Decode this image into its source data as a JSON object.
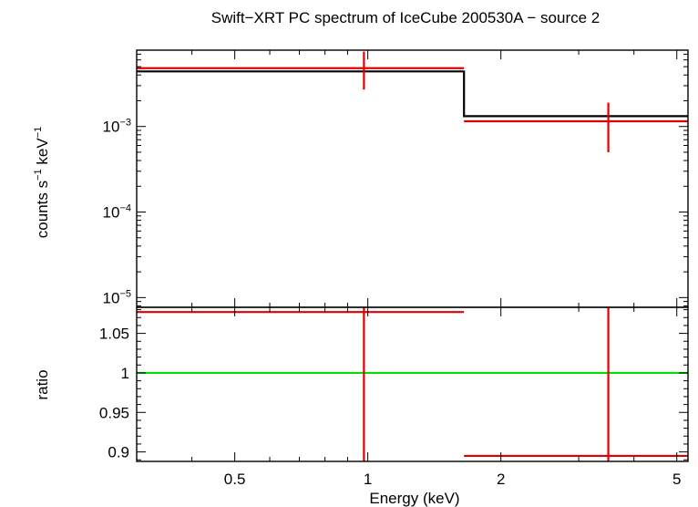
{
  "chart_data": [
    {
      "type": "scatter",
      "panel": "spectrum",
      "title": "Swift−XRT PC spectrum of IceCube 200530A − source 2",
      "ylabel_parts": [
        "counts s",
        "−1",
        " keV",
        "−1"
      ],
      "xscale": "log",
      "yscale": "log",
      "xlim": [
        0.3,
        5.3
      ],
      "ylim": [
        7.7e-06,
        0.0078
      ],
      "yticks": [
        {
          "value": 0.001,
          "base": "10",
          "exp": "−3"
        },
        {
          "value": 0.0001,
          "base": "10",
          "exp": "−4"
        },
        {
          "value": 1e-05,
          "base": "10",
          "exp": "−5"
        }
      ],
      "data_points": [
        {
          "x": 0.98,
          "xlo": 0.3,
          "xhi": 1.65,
          "y": 0.0048,
          "ylo": 0.0027,
          "yhi": 0.0075
        },
        {
          "x": 3.5,
          "xlo": 1.65,
          "xhi": 5.3,
          "y": 0.00115,
          "ylo": 0.0005,
          "yhi": 0.0019
        }
      ],
      "model_steps": [
        {
          "xlo": 0.3,
          "xhi": 1.65,
          "y": 0.0044
        },
        {
          "xlo": 1.65,
          "xhi": 5.3,
          "y": 0.00132
        }
      ],
      "colors": {
        "data": "#e00000",
        "model": "#000000"
      }
    },
    {
      "type": "scatter",
      "panel": "ratio",
      "xlabel": "Energy (keV)",
      "ylabel": "ratio",
      "xscale": "log",
      "xlim": [
        0.3,
        5.3
      ],
      "ylim": [
        0.888,
        1.083
      ],
      "xticks": [
        {
          "value": 0.5,
          "label": "0.5"
        },
        {
          "value": 1,
          "label": "1"
        },
        {
          "value": 2,
          "label": "2"
        },
        {
          "value": 5,
          "label": "5"
        }
      ],
      "yticks": [
        {
          "value": 0.9,
          "label": "0.9"
        },
        {
          "value": 0.95,
          "label": "0.95"
        },
        {
          "value": 1,
          "label": "1"
        },
        {
          "value": 1.05,
          "label": "1.05"
        }
      ],
      "data_points": [
        {
          "x": 0.98,
          "xlo": 0.3,
          "xhi": 1.65,
          "y": 1.077,
          "ylo": 0.888,
          "yhi": 1.083
        },
        {
          "x": 3.5,
          "xlo": 1.65,
          "xhi": 5.3,
          "y": 0.895,
          "ylo": 0.888,
          "yhi": 1.083
        }
      ],
      "reference_line": 1,
      "colors": {
        "data": "#e00000",
        "reference": "#00e000"
      }
    }
  ]
}
